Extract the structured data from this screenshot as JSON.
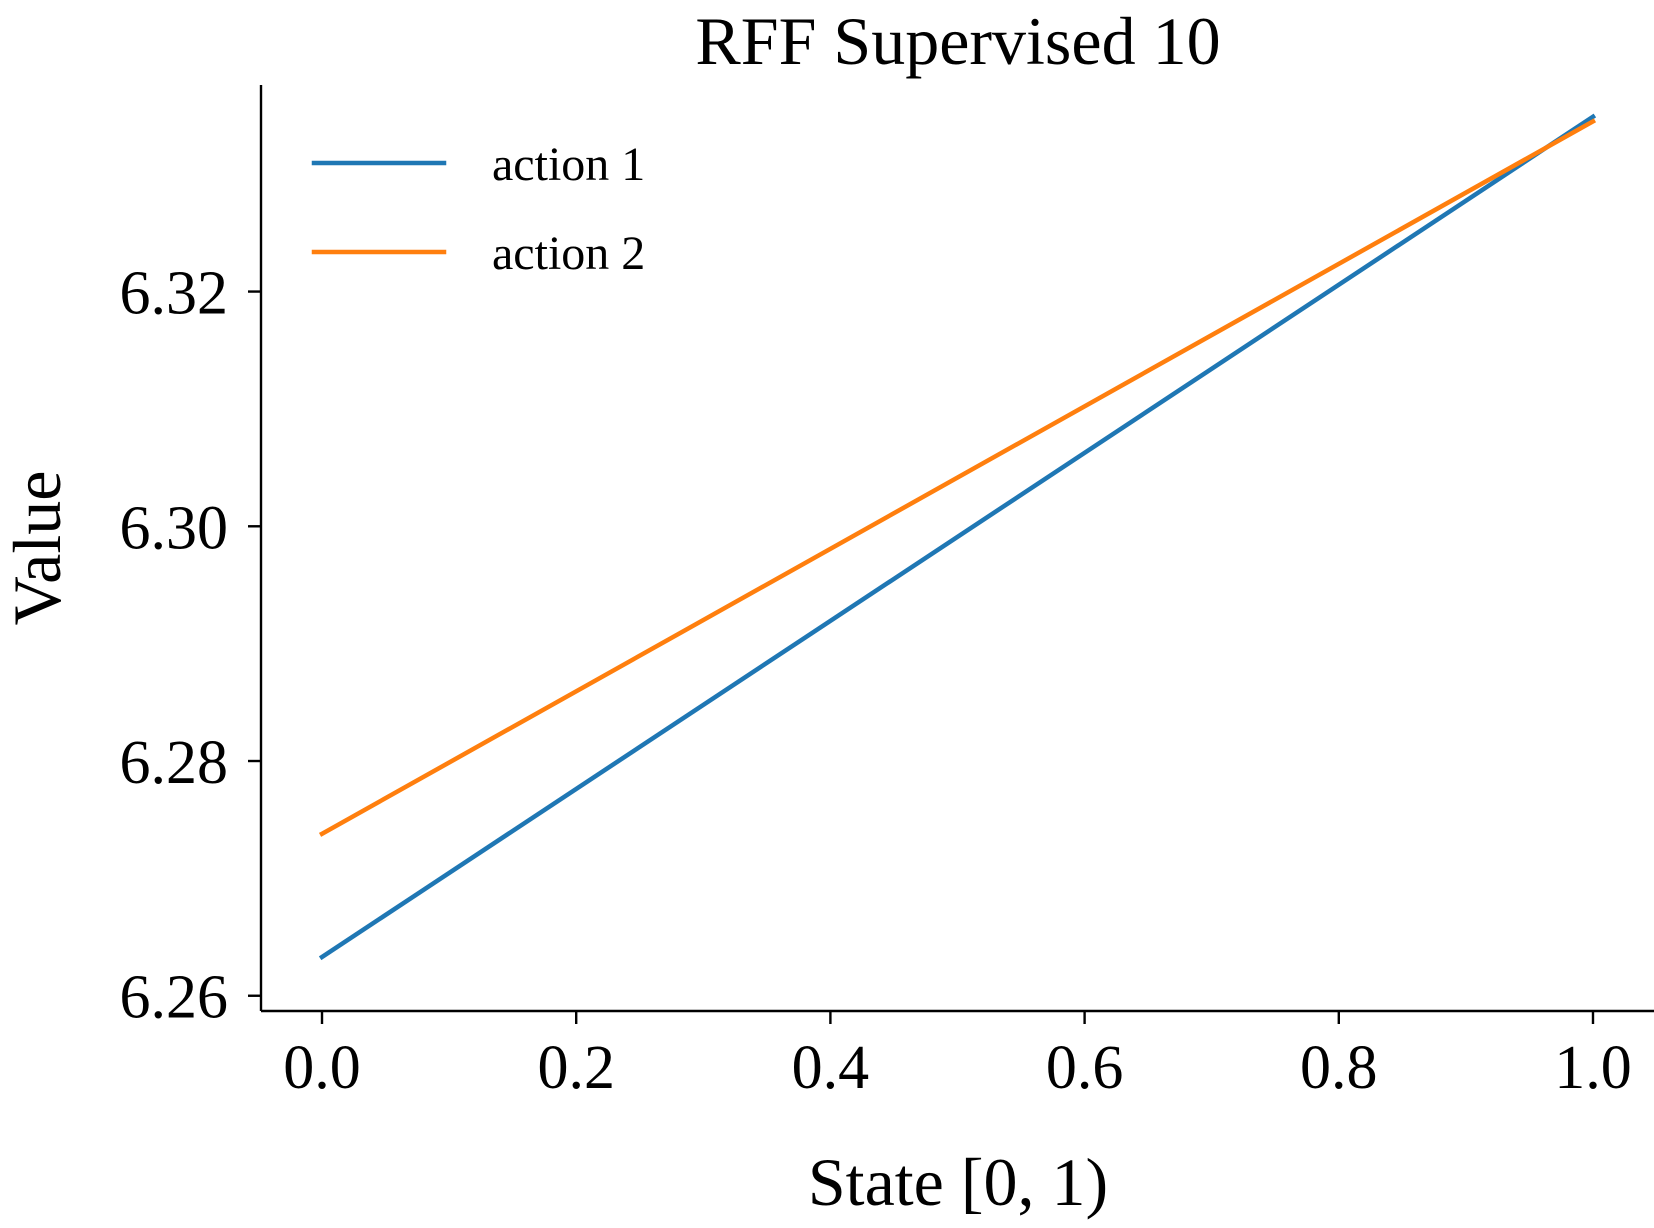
{
  "chart_data": {
    "type": "line",
    "title": "RFF Supervised 10",
    "xlabel": "State [0, 1)",
    "ylabel": "Value",
    "x": [
      0.0,
      1.0
    ],
    "xlim": [
      -0.048,
      1.048
    ],
    "ylim": [
      6.2587,
      6.3376
    ],
    "xticks": [
      0.0,
      0.2,
      0.4,
      0.6,
      0.8,
      1.0
    ],
    "xtick_labels": [
      "0.0",
      "0.2",
      "0.4",
      "0.6",
      "0.8",
      "1.0"
    ],
    "yticks": [
      6.26,
      6.28,
      6.3,
      6.32
    ],
    "ytick_labels": [
      "6.26",
      "6.28",
      "6.30",
      "6.32"
    ],
    "grid": false,
    "legend_position": "top-left",
    "series": [
      {
        "name": "action 1",
        "color": "#1f77b4",
        "values": [
          6.2633,
          6.3349
        ]
      },
      {
        "name": "action 2",
        "color": "#ff7f0e",
        "values": [
          6.2738,
          6.3345
        ]
      }
    ]
  }
}
